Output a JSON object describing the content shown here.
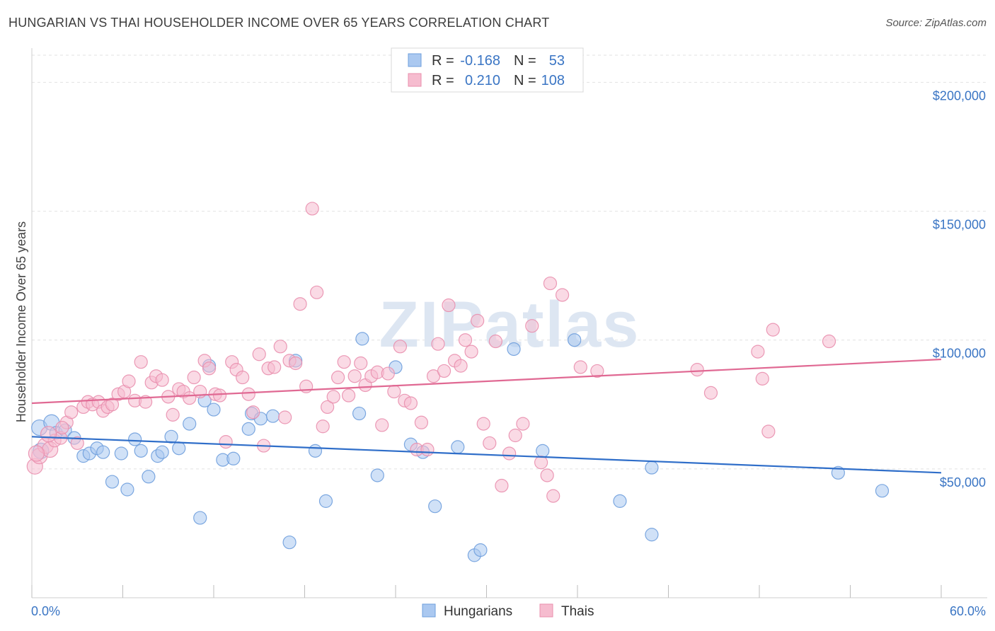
{
  "title": "HUNGARIAN VS THAI HOUSEHOLDER INCOME OVER 65 YEARS CORRELATION CHART",
  "source": "Source: ZipAtlas.com",
  "watermark": "ZIPatlas",
  "colors": {
    "hungarians_fill": "#aac8f0",
    "hungarians_stroke": "#6f9fdd",
    "hungarians_line": "#2f6ec9",
    "thais_fill": "#f6bccf",
    "thais_stroke": "#e98fae",
    "thais_line": "#e06993",
    "tick_label": "#3a75c4"
  },
  "legend": {
    "r_label": "R =",
    "n_label": "N =",
    "rows": [
      {
        "r": "-0.168",
        "n": "53"
      },
      {
        "r": "0.210",
        "n": "108"
      }
    ]
  },
  "chart_data": {
    "type": "scatter",
    "title": "HUNGARIAN VS THAI HOUSEHOLDER INCOME OVER 65 YEARS CORRELATION CHART",
    "xlabel": "",
    "ylabel": "Householder Income Over 65 years",
    "xlim": [
      0,
      60
    ],
    "ylim": [
      0,
      210000
    ],
    "x_tick_labels": [
      "0.0%",
      "60.0%"
    ],
    "y_ticks": [
      50000,
      100000,
      150000,
      200000
    ],
    "y_tick_labels": [
      "$50,000",
      "$100,000",
      "$150,000",
      "$200,000"
    ],
    "grid": "horizontal dashed",
    "legend_position": "top-center",
    "series": [
      {
        "name": "Hungarians",
        "r": -0.168,
        "n": 53,
        "trend": {
          "x0": 0,
          "y0": 62500,
          "x1": 60,
          "y1": 48500
        },
        "points": [
          [
            0.5,
            66000
          ],
          [
            0.6,
            57000
          ],
          [
            1.3,
            68000
          ],
          [
            1.6,
            64000
          ],
          [
            2.2,
            65000
          ],
          [
            2.8,
            62000
          ],
          [
            3.4,
            55000
          ],
          [
            3.8,
            56000
          ],
          [
            4.3,
            58000
          ],
          [
            4.7,
            56500
          ],
          [
            5.3,
            45000
          ],
          [
            5.9,
            56000
          ],
          [
            6.3,
            42000
          ],
          [
            6.8,
            61500
          ],
          [
            7.2,
            57000
          ],
          [
            7.7,
            47000
          ],
          [
            8.3,
            55000
          ],
          [
            8.6,
            56500
          ],
          [
            9.2,
            62500
          ],
          [
            9.7,
            58000
          ],
          [
            10.4,
            67500
          ],
          [
            11.1,
            31000
          ],
          [
            11.4,
            76500
          ],
          [
            11.7,
            90000
          ],
          [
            12.0,
            73000
          ],
          [
            12.6,
            53500
          ],
          [
            13.3,
            54000
          ],
          [
            14.3,
            65500
          ],
          [
            14.5,
            71500
          ],
          [
            15.1,
            69500
          ],
          [
            15.9,
            70500
          ],
          [
            17.0,
            21500
          ],
          [
            17.4,
            92000
          ],
          [
            18.7,
            57000
          ],
          [
            19.4,
            37500
          ],
          [
            21.6,
            71500
          ],
          [
            21.8,
            100500
          ],
          [
            22.8,
            47500
          ],
          [
            24.0,
            89500
          ],
          [
            25.0,
            59500
          ],
          [
            25.8,
            56500
          ],
          [
            26.6,
            35500
          ],
          [
            28.1,
            58500
          ],
          [
            29.2,
            16500
          ],
          [
            29.6,
            18500
          ],
          [
            31.8,
            96500
          ],
          [
            33.7,
            57000
          ],
          [
            35.8,
            100000
          ],
          [
            38.8,
            37500
          ],
          [
            40.9,
            50500
          ],
          [
            40.9,
            24500
          ],
          [
            53.2,
            48500
          ],
          [
            56.1,
            41500
          ]
        ]
      },
      {
        "name": "Thais",
        "r": 0.21,
        "n": 108,
        "trend": {
          "x0": 0,
          "y0": 75500,
          "x1": 60,
          "y1": 92500
        },
        "points": [
          [
            0.2,
            51000
          ],
          [
            0.5,
            55000
          ],
          [
            0.9,
            59000
          ],
          [
            1.2,
            57500
          ],
          [
            1.5,
            61000
          ],
          [
            1.9,
            62000
          ],
          [
            2.3,
            68000
          ],
          [
            2.6,
            72000
          ],
          [
            3.0,
            60000
          ],
          [
            3.4,
            74000
          ],
          [
            3.7,
            76000
          ],
          [
            4.0,
            75000
          ],
          [
            4.4,
            76000
          ],
          [
            4.7,
            72500
          ],
          [
            5.0,
            74000
          ],
          [
            5.3,
            75000
          ],
          [
            5.7,
            79000
          ],
          [
            6.1,
            80000
          ],
          [
            6.4,
            84000
          ],
          [
            6.8,
            76500
          ],
          [
            7.2,
            91500
          ],
          [
            7.5,
            76000
          ],
          [
            7.9,
            83500
          ],
          [
            8.2,
            86000
          ],
          [
            8.6,
            84500
          ],
          [
            9.0,
            78000
          ],
          [
            9.3,
            71000
          ],
          [
            9.7,
            81000
          ],
          [
            10.0,
            80000
          ],
          [
            10.4,
            77500
          ],
          [
            10.7,
            85500
          ],
          [
            11.1,
            80000
          ],
          [
            11.4,
            92000
          ],
          [
            11.7,
            89000
          ],
          [
            12.1,
            79000
          ],
          [
            12.4,
            78500
          ],
          [
            12.8,
            60500
          ],
          [
            13.2,
            91500
          ],
          [
            13.5,
            88500
          ],
          [
            13.9,
            85500
          ],
          [
            14.3,
            79000
          ],
          [
            14.6,
            72000
          ],
          [
            15.0,
            94500
          ],
          [
            15.3,
            59000
          ],
          [
            15.6,
            89000
          ],
          [
            16.0,
            89500
          ],
          [
            16.4,
            97500
          ],
          [
            16.7,
            70000
          ],
          [
            17.0,
            92000
          ],
          [
            17.4,
            91000
          ],
          [
            17.7,
            114000
          ],
          [
            18.1,
            82000
          ],
          [
            18.5,
            151000
          ],
          [
            18.8,
            118500
          ],
          [
            19.2,
            66500
          ],
          [
            19.5,
            74000
          ],
          [
            19.9,
            78000
          ],
          [
            20.2,
            85500
          ],
          [
            20.6,
            91500
          ],
          [
            20.9,
            78500
          ],
          [
            21.3,
            86000
          ],
          [
            21.7,
            91000
          ],
          [
            22.0,
            82500
          ],
          [
            22.4,
            86000
          ],
          [
            22.8,
            87500
          ],
          [
            23.1,
            67000
          ],
          [
            23.5,
            87000
          ],
          [
            23.9,
            80000
          ],
          [
            24.3,
            97500
          ],
          [
            24.6,
            76500
          ],
          [
            25.0,
            75500
          ],
          [
            25.4,
            57500
          ],
          [
            25.7,
            68000
          ],
          [
            26.1,
            57500
          ],
          [
            26.5,
            86000
          ],
          [
            26.8,
            98500
          ],
          [
            27.2,
            88000
          ],
          [
            27.5,
            113500
          ],
          [
            27.9,
            92000
          ],
          [
            28.3,
            90000
          ],
          [
            28.6,
            100000
          ],
          [
            29.0,
            95500
          ],
          [
            29.4,
            107500
          ],
          [
            29.8,
            67500
          ],
          [
            30.2,
            60000
          ],
          [
            30.6,
            99500
          ],
          [
            31.0,
            43500
          ],
          [
            31.5,
            56000
          ],
          [
            31.9,
            63000
          ],
          [
            32.4,
            67500
          ],
          [
            33.0,
            105500
          ],
          [
            33.6,
            52500
          ],
          [
            34.0,
            47500
          ],
          [
            34.2,
            122000
          ],
          [
            34.4,
            39500
          ],
          [
            35.0,
            117500
          ],
          [
            36.2,
            89500
          ],
          [
            37.3,
            88000
          ],
          [
            43.9,
            88500
          ],
          [
            44.8,
            79500
          ],
          [
            47.9,
            95500
          ],
          [
            48.2,
            85000
          ],
          [
            48.6,
            64500
          ],
          [
            48.9,
            104000
          ],
          [
            52.6,
            99500
          ],
          [
            0.3,
            56000
          ],
          [
            1.1,
            63500
          ],
          [
            2.0,
            66000
          ]
        ]
      }
    ]
  },
  "bottom_legend": {
    "items": [
      "Hungarians",
      "Thais"
    ]
  }
}
